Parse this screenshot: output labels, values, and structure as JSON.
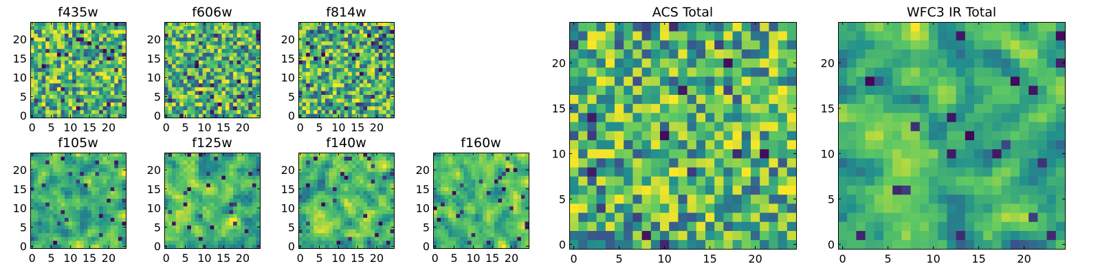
{
  "figure": {
    "colormap": "viridis",
    "colormap_stops": [
      "#440154",
      "#3b528b",
      "#21908d",
      "#5dc863",
      "#fde725"
    ]
  },
  "chart_data": [
    {
      "type": "heatmap",
      "title": "f435w",
      "grid": false,
      "xlim": [
        -0.5,
        24.5
      ],
      "ylim": [
        -0.5,
        24.5
      ],
      "xticks": [
        0,
        5,
        10,
        15,
        20
      ],
      "yticks": [
        0,
        5,
        10,
        15,
        20
      ],
      "shape": [
        25,
        25
      ],
      "smoothness": 0,
      "seed": 11,
      "dark_fraction": 0.05
    },
    {
      "type": "heatmap",
      "title": "f606w",
      "grid": false,
      "xlim": [
        -0.5,
        24.5
      ],
      "ylim": [
        -0.5,
        24.5
      ],
      "xticks": [
        0,
        5,
        10,
        15,
        20
      ],
      "yticks": [
        0,
        5,
        10,
        15,
        20
      ],
      "shape": [
        25,
        25
      ],
      "smoothness": 0,
      "seed": 23,
      "dark_fraction": 0.05
    },
    {
      "type": "heatmap",
      "title": "f814w",
      "grid": false,
      "xlim": [
        -0.5,
        24.5
      ],
      "ylim": [
        -0.5,
        24.5
      ],
      "xticks": [
        0,
        5,
        10,
        15,
        20
      ],
      "yticks": [
        0,
        5,
        10,
        15,
        20
      ],
      "shape": [
        25,
        25
      ],
      "smoothness": 0,
      "seed": 37,
      "dark_fraction": 0.06
    },
    {
      "type": "heatmap",
      "title": "f105w",
      "grid": false,
      "xlim": [
        -0.5,
        24.5
      ],
      "ylim": [
        -0.5,
        24.5
      ],
      "xticks": [
        0,
        5,
        10,
        15,
        20
      ],
      "yticks": [
        0,
        5,
        10,
        15,
        20
      ],
      "shape": [
        25,
        25
      ],
      "smoothness": 1,
      "seed": 41,
      "dark_fraction": 0.04
    },
    {
      "type": "heatmap",
      "title": "f125w",
      "grid": false,
      "xlim": [
        -0.5,
        24.5
      ],
      "ylim": [
        -0.5,
        24.5
      ],
      "xticks": [
        0,
        5,
        10,
        15,
        20
      ],
      "yticks": [
        0,
        5,
        10,
        15,
        20
      ],
      "shape": [
        25,
        25
      ],
      "smoothness": 1,
      "seed": 53,
      "dark_fraction": 0.04
    },
    {
      "type": "heatmap",
      "title": "f140w",
      "grid": false,
      "xlim": [
        -0.5,
        24.5
      ],
      "ylim": [
        -0.5,
        24.5
      ],
      "xticks": [
        0,
        5,
        10,
        15,
        20
      ],
      "yticks": [
        0,
        5,
        10,
        15,
        20
      ],
      "shape": [
        25,
        25
      ],
      "smoothness": 1,
      "seed": 67,
      "dark_fraction": 0.04
    },
    {
      "type": "heatmap",
      "title": "f160w",
      "grid": false,
      "xlim": [
        -0.5,
        24.5
      ],
      "ylim": [
        -0.5,
        24.5
      ],
      "xticks": [
        0,
        5,
        10,
        15,
        20
      ],
      "yticks": [
        0,
        5,
        10,
        15,
        20
      ],
      "shape": [
        25,
        25
      ],
      "smoothness": 1,
      "seed": 79,
      "dark_fraction": 0.04
    },
    {
      "type": "heatmap",
      "title": "ACS Total",
      "grid": false,
      "xlim": [
        -0.5,
        24.5
      ],
      "ylim": [
        -0.5,
        24.5
      ],
      "xticks": [
        0,
        5,
        10,
        15,
        20
      ],
      "yticks": [
        0,
        5,
        10,
        15,
        20
      ],
      "shape": [
        25,
        25
      ],
      "smoothness": 0,
      "seed": 97,
      "dark_fraction": 0.03
    },
    {
      "type": "heatmap",
      "title": "WFC3 IR Total",
      "grid": false,
      "xlim": [
        -0.5,
        24.5
      ],
      "ylim": [
        -0.5,
        24.5
      ],
      "xticks": [
        0,
        5,
        10,
        15,
        20
      ],
      "yticks": [
        0,
        5,
        10,
        15,
        20
      ],
      "shape": [
        25,
        25
      ],
      "smoothness": 1,
      "seed": 101,
      "dark_fraction": 0.03
    }
  ]
}
